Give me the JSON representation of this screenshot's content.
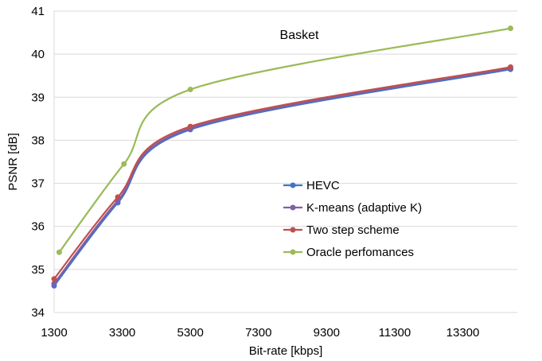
{
  "chart_data": {
    "type": "line",
    "title": "Basket",
    "xlabel": "Bit-rate [kbps]",
    "ylabel": "PSNR [dB]",
    "xlim": [
      1300,
      14900
    ],
    "ylim": [
      34,
      41
    ],
    "xticks": [
      1300,
      3300,
      5300,
      7300,
      9300,
      11300,
      13300
    ],
    "yticks": [
      34,
      35,
      36,
      37,
      38,
      39,
      40,
      41
    ],
    "grid": "horizontal",
    "legend_position": "lower-right",
    "series": [
      {
        "name": "HEVC",
        "color": "#4472C4",
        "points": [
          [
            1300,
            34.62
          ],
          [
            3170,
            36.55
          ],
          [
            5300,
            38.25
          ],
          [
            14700,
            39.65
          ]
        ]
      },
      {
        "name": "K-means (adaptive K)",
        "color": "#7F5FA8",
        "points": [
          [
            1300,
            34.67
          ],
          [
            3170,
            36.6
          ],
          [
            5300,
            38.28
          ],
          [
            14700,
            39.68
          ]
        ]
      },
      {
        "name": "Two step scheme",
        "color": "#C0504D",
        "points": [
          [
            1300,
            34.78
          ],
          [
            3170,
            36.68
          ],
          [
            5300,
            38.32
          ],
          [
            14700,
            39.7
          ]
        ]
      },
      {
        "name": "Oracle perfomances",
        "color": "#9BBB59",
        "points": [
          [
            1450,
            35.4
          ],
          [
            3350,
            37.45
          ],
          [
            5300,
            39.18
          ],
          [
            14700,
            40.6
          ]
        ]
      }
    ]
  }
}
